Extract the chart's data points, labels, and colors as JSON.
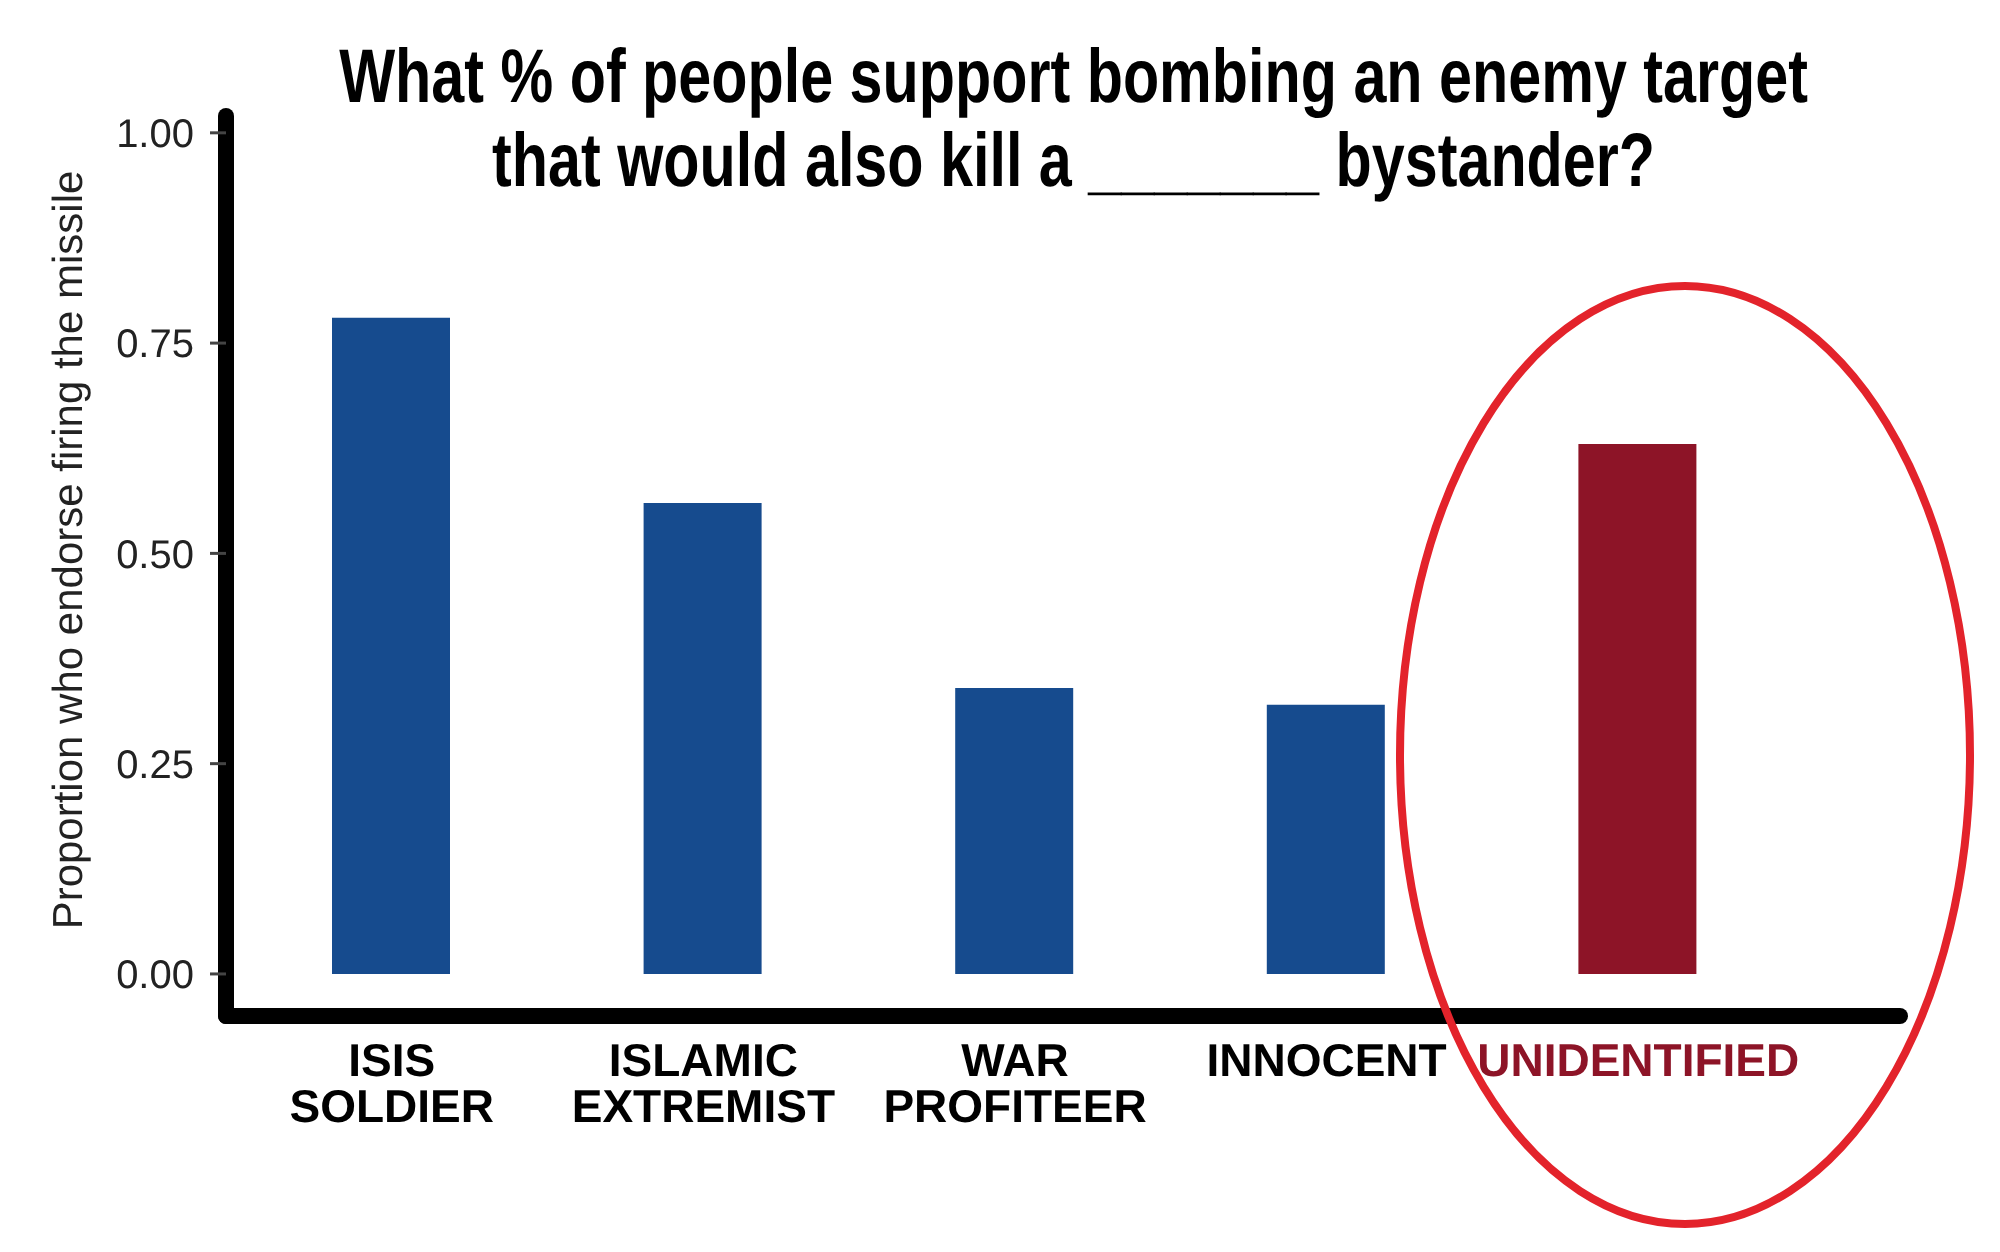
{
  "chart_data": {
    "type": "bar",
    "title": "What % of people support bombing an enemy target\nthat would also kill a _______ bystander?",
    "ylabel": "Proportion who endorse firing the missile",
    "categories": [
      "ISIS SOLDIER",
      "ISLAMIC EXTREMIST",
      "WAR PROFITEER",
      "INNOCENT",
      "UNIDENTIFIED"
    ],
    "values": [
      0.78,
      0.56,
      0.34,
      0.32,
      0.63
    ],
    "colors": [
      "#164b8e",
      "#164b8e",
      "#164b8e",
      "#164b8e",
      "#8d1427"
    ],
    "ylim": [
      -0.05,
      1.02
    ],
    "yticks": [
      {
        "value": 0,
        "label": "0.00"
      },
      0.25,
      {
        "value": 0.5,
        "label": "0.50"
      },
      0.75,
      {
        "value": 1,
        "label": "1.00"
      }
    ]
  }
}
